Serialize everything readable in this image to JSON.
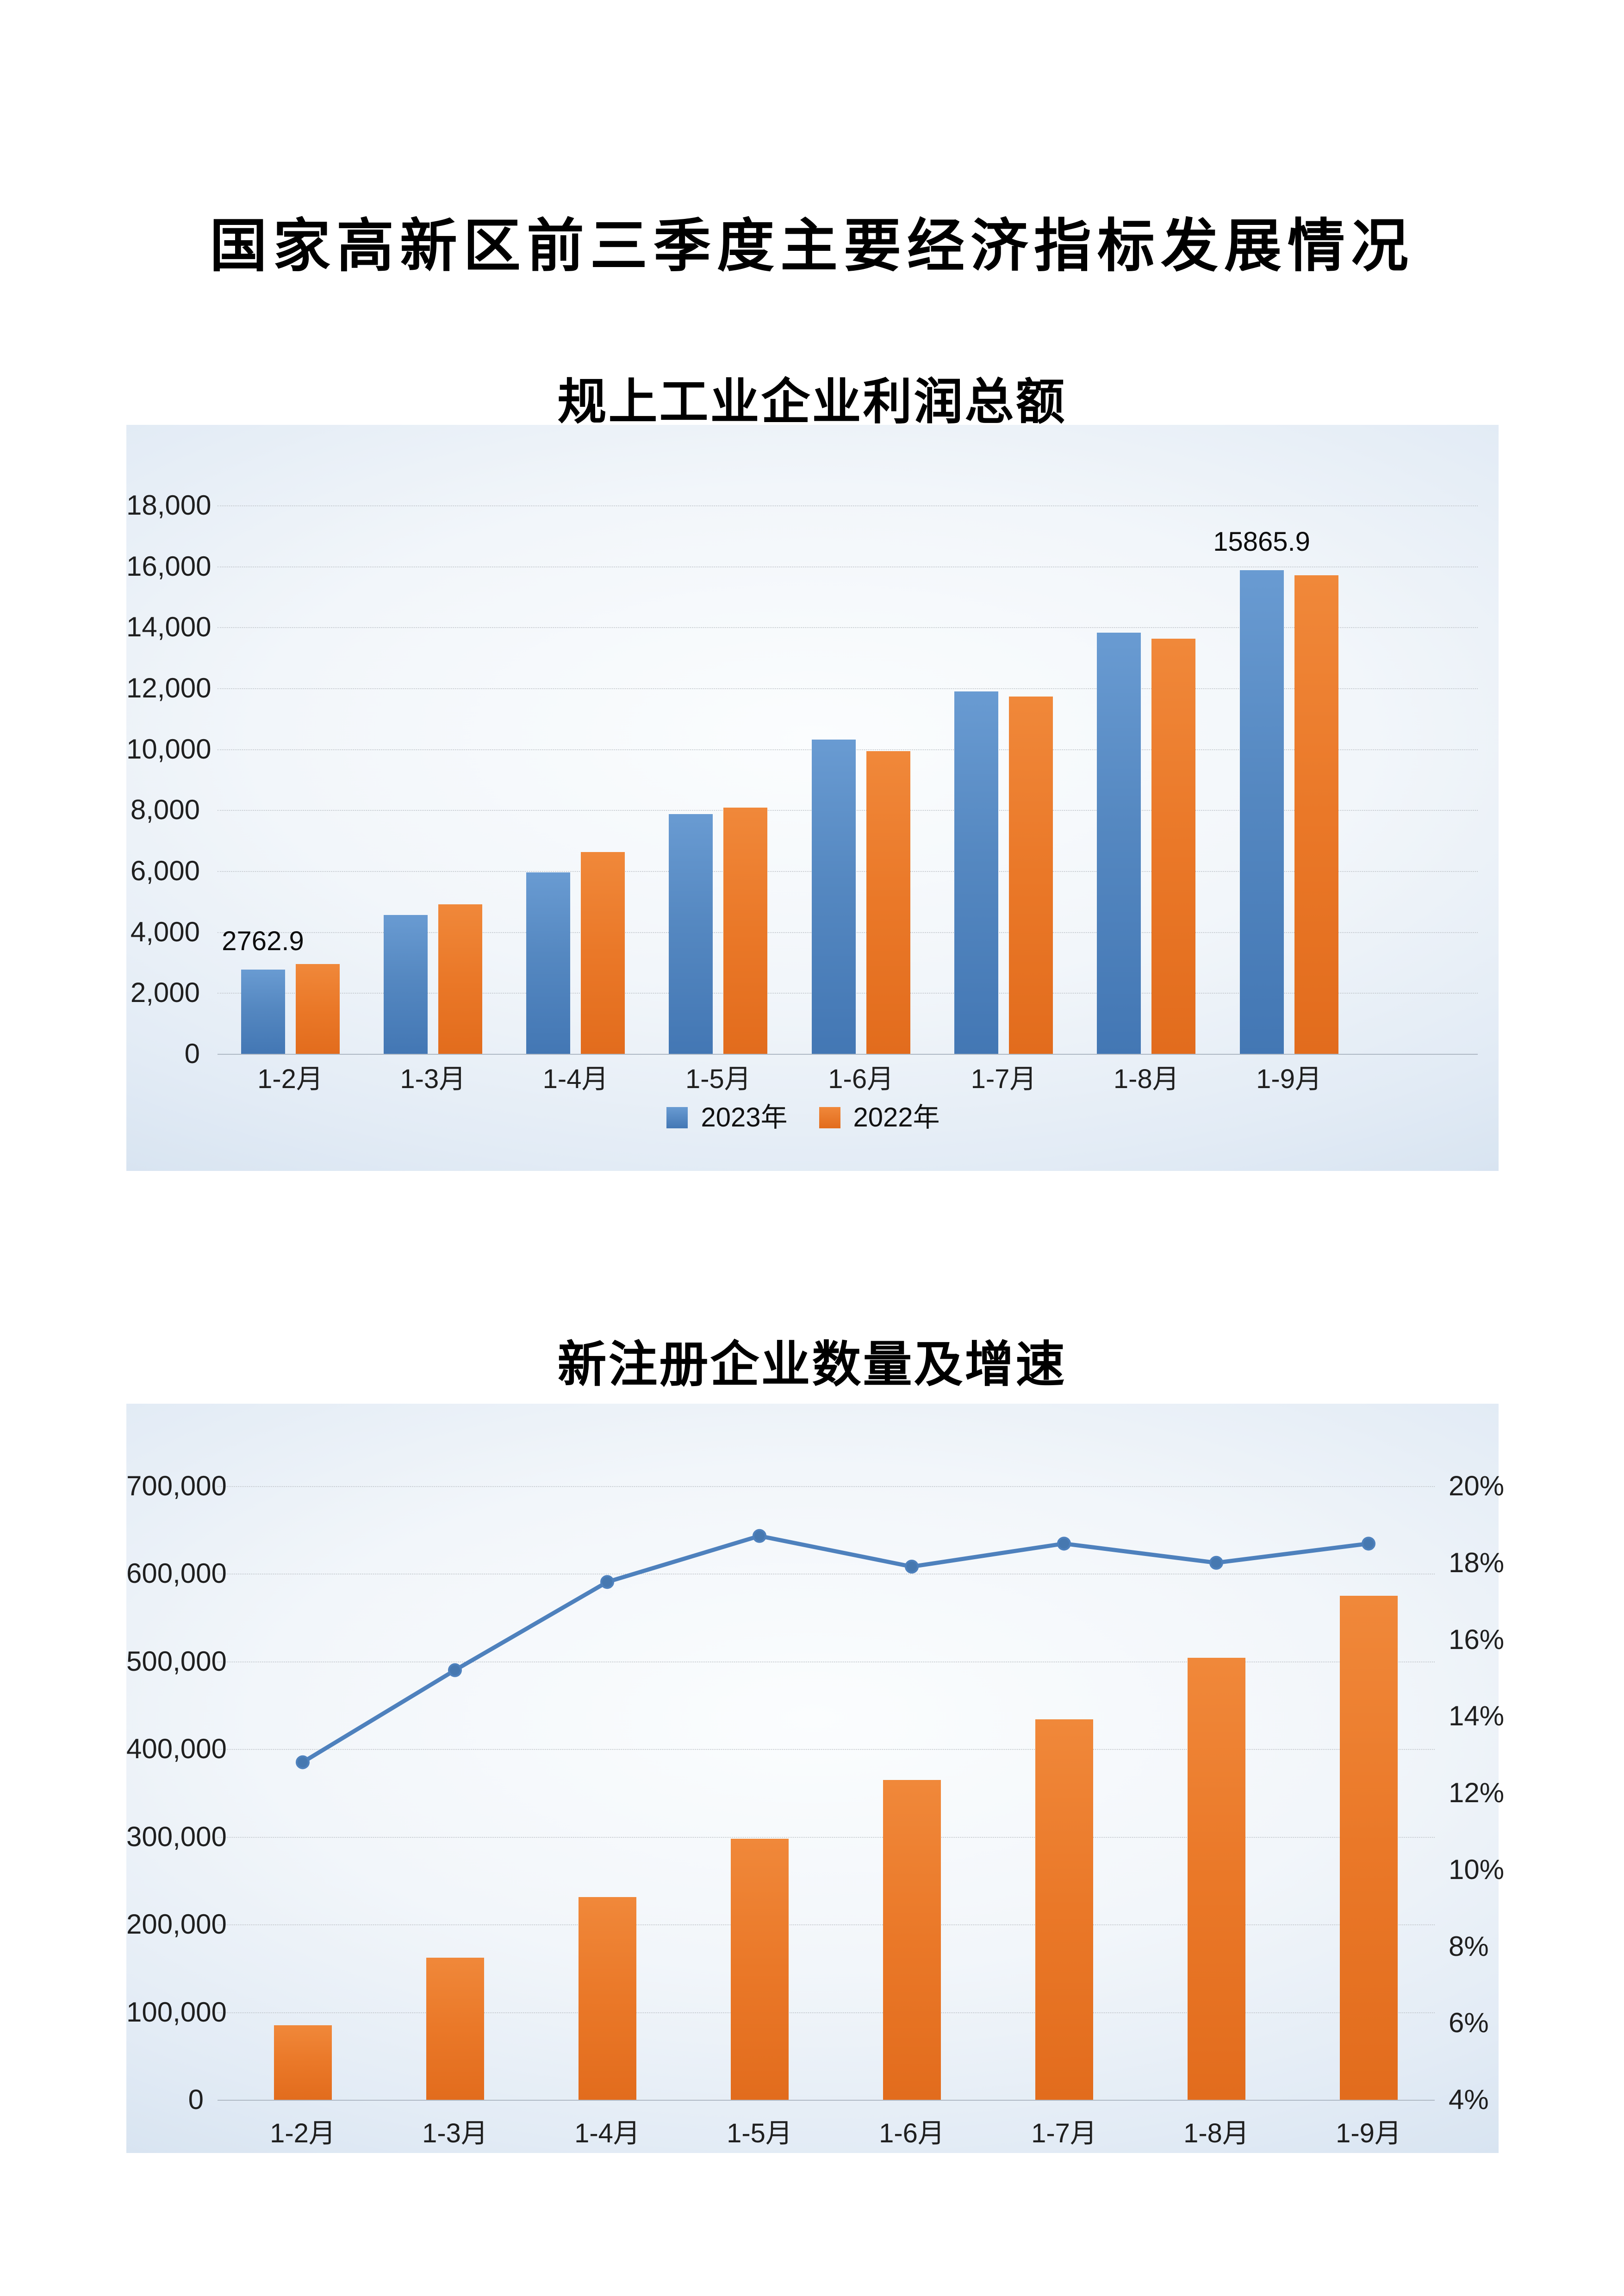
{
  "page": {
    "main_title": "国家高新区前三季度主要经济指标发展情况"
  },
  "colors": {
    "bar_blue": "#4e86c2",
    "bar_orange": "#e8772e",
    "line_blue": "#4e81bd",
    "panel_edge": "#c6d6ea"
  },
  "chart_data": [
    {
      "type": "bar",
      "title": "规上工业企业利润总额",
      "categories": [
        "1-2月",
        "1-3月",
        "1-4月",
        "1-5月",
        "1-6月",
        "1-7月",
        "1-8月",
        "1-9月"
      ],
      "series": [
        {
          "name": "2023年",
          "color_top": "#699bd2",
          "color_bottom": "#4377b4",
          "class": "bar-blue",
          "values": [
            2762.9,
            4550,
            5950,
            7870,
            10320,
            11890,
            13820,
            15865.9
          ]
        },
        {
          "name": "2022年",
          "color_top": "#f0883a",
          "color_bottom": "#e26c1d",
          "class": "bar-orange",
          "values": [
            2950,
            4900,
            6630,
            8080,
            9930,
            11730,
            13620,
            15710
          ]
        }
      ],
      "data_labels": [
        {
          "series": 0,
          "index": 0,
          "text": "2762.9"
        },
        {
          "series": 0,
          "index": 7,
          "text": "15865.9"
        }
      ],
      "ylim": [
        0,
        18000
      ],
      "ytick_step": 2000,
      "y_tick_labels": [
        "0",
        "2,000",
        "4,000",
        "6,000",
        "8,000",
        "10,000",
        "12,000",
        "14,000",
        "16,000",
        "18,000"
      ],
      "grid": true,
      "legend_position": "bottom"
    },
    {
      "type": "bar+line",
      "title": "新注册企业数量及增速",
      "categories": [
        "1-2月",
        "1-3月",
        "1-4月",
        "1-5月",
        "1-6月",
        "1-7月",
        "1-8月",
        "1-9月"
      ],
      "bar_series": {
        "name": "新注册企业数量",
        "class": "bar-orange",
        "values": [
          85000,
          162000,
          231000,
          298000,
          365000,
          434000,
          504000,
          575000
        ]
      },
      "line_series": {
        "name": "增速",
        "color": "#4e81bd",
        "values": [
          12.8,
          15.2,
          17.5,
          18.7,
          17.9,
          18.5,
          18.0,
          18.5
        ]
      },
      "ylim_left": [
        0,
        700000
      ],
      "ytick_left_step": 100000,
      "y_tick_labels_left": [
        "0",
        "100,000",
        "200,000",
        "300,000",
        "400,000",
        "500,000",
        "600,000",
        "700,000"
      ],
      "ylim_right": [
        4,
        20
      ],
      "ytick_right_step": 2,
      "y_tick_labels_right": [
        "4%",
        "6%",
        "8%",
        "10%",
        "12%",
        "14%",
        "16%",
        "18%",
        "20%"
      ],
      "grid": true,
      "legend_position": "none"
    }
  ]
}
